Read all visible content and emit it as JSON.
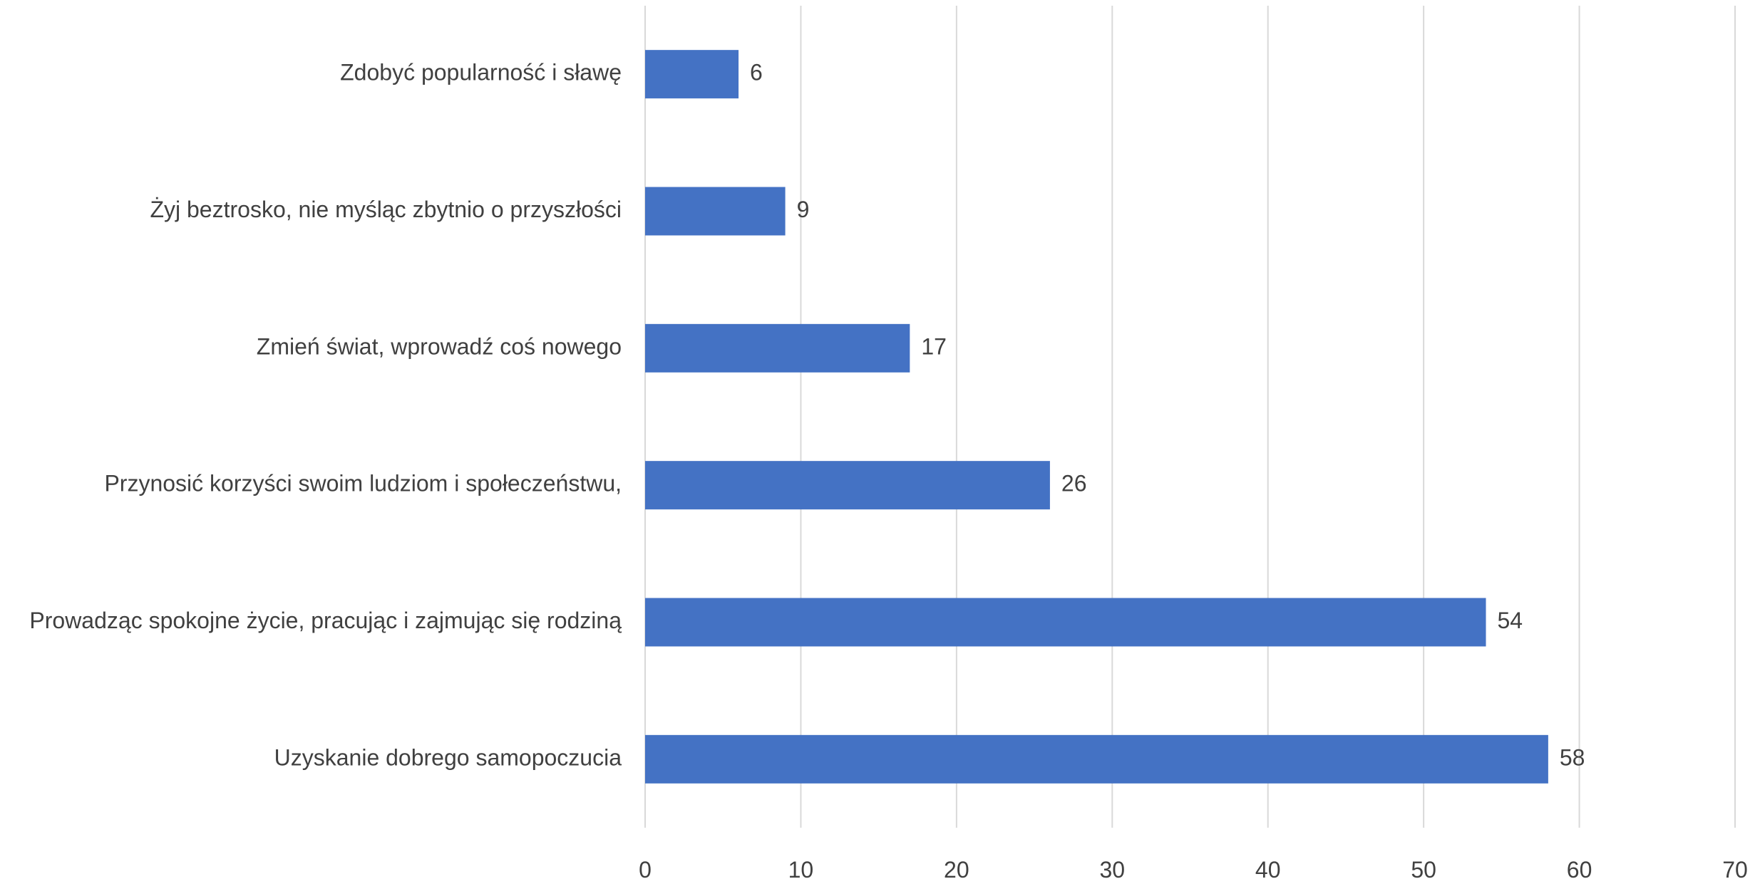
{
  "chart_data": {
    "type": "bar",
    "orientation": "horizontal",
    "title": "",
    "xlabel": "",
    "ylabel": "",
    "categories": [
      "Zdobyć popularność i sławę",
      "Żyj beztrosko, nie myśląc zbytnio o przyszłości",
      "Zmień świat, wprowadź coś nowego",
      "Przynosić korzyści swoim ludziom i społeczeństwu,",
      "Prowadząc spokojne życie, pracując i zajmując się rodziną",
      "Uzyskanie dobrego samopoczucia"
    ],
    "values": [
      6,
      9,
      17,
      26,
      54,
      58
    ],
    "xlim": [
      0,
      70
    ],
    "x_ticks": [
      "0",
      "10",
      "20",
      "30",
      "40",
      "50",
      "60",
      "70"
    ],
    "data_labels": [
      "6",
      "9",
      "17",
      "26",
      "54",
      "58"
    ],
    "bar_color": "#4472C4",
    "grid": true,
    "legend": false
  }
}
